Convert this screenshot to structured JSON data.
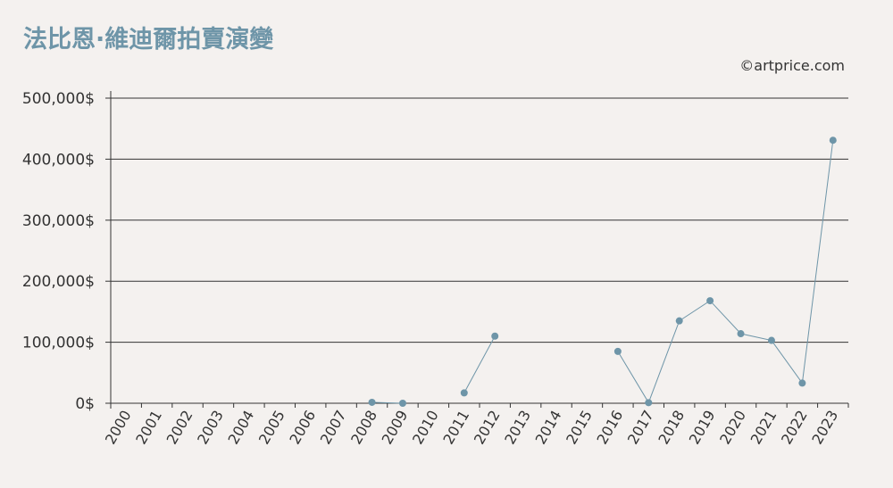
{
  "chart_data": {
    "type": "line",
    "title": "法比恩·維迪爾拍賣演變",
    "credit": "©artprice.com",
    "categories": [
      "2000",
      "2001",
      "2002",
      "2003",
      "2004",
      "2005",
      "2006",
      "2007",
      "2008",
      "2009",
      "2010",
      "2011",
      "2012",
      "2013",
      "2014",
      "2015",
      "2016",
      "2017",
      "2018",
      "2019",
      "2020",
      "2021",
      "2022",
      "2023"
    ],
    "yticks": [
      "0$",
      "100,000$",
      "200,000$",
      "300,000$",
      "400,000$",
      "500,000$"
    ],
    "ylim": [
      0,
      500000
    ],
    "grid": true,
    "series": [
      {
        "values": [
          null,
          null,
          null,
          null,
          null,
          null,
          null,
          null,
          1500,
          0,
          null,
          17000,
          110000,
          null,
          null,
          null,
          85000,
          1000,
          135000,
          168000,
          114000,
          103000,
          33000,
          431000
        ],
        "color": "#6e95a8"
      }
    ]
  }
}
